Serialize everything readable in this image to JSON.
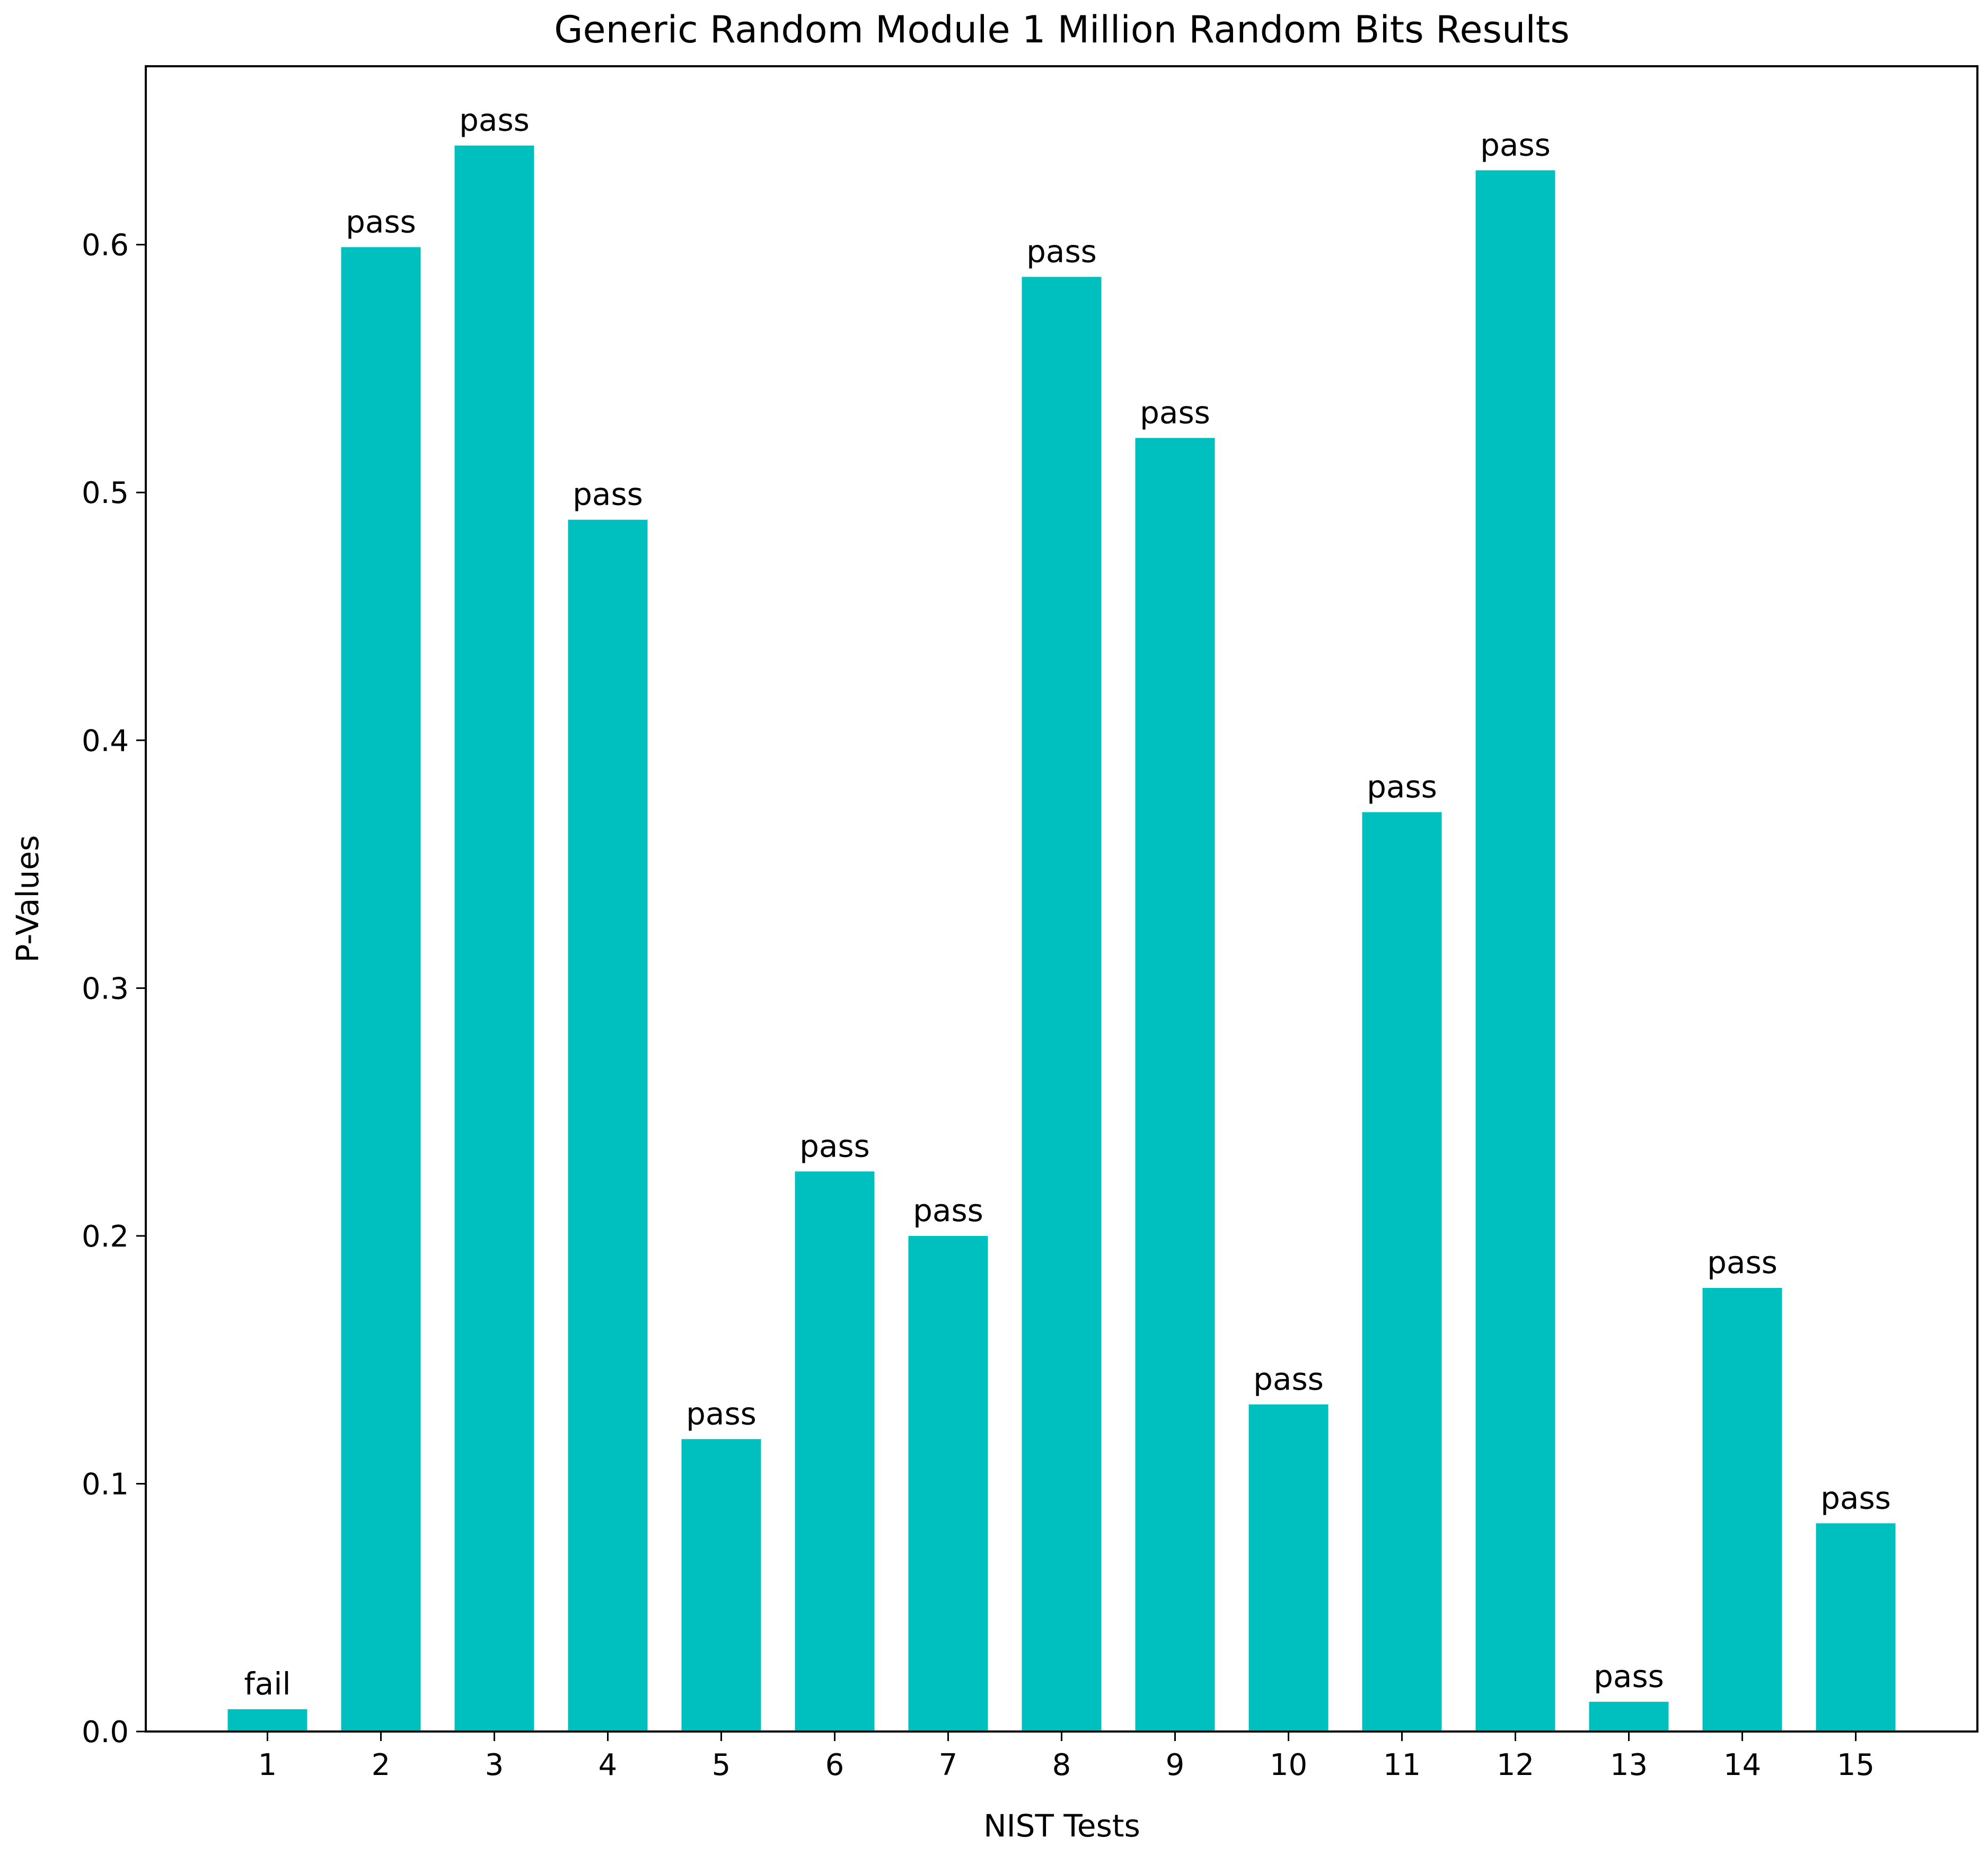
{
  "chart_data": {
    "type": "bar",
    "title": "Generic Random Module 1 Million Random Bits Results",
    "xlabel": "NIST Tests",
    "ylabel": "P-Values",
    "categories": [
      "1",
      "2",
      "3",
      "4",
      "5",
      "6",
      "7",
      "8",
      "9",
      "10",
      "11",
      "12",
      "13",
      "14",
      "15"
    ],
    "values": [
      0.009,
      0.599,
      0.64,
      0.489,
      0.118,
      0.226,
      0.2,
      0.587,
      0.522,
      0.132,
      0.371,
      0.63,
      0.012,
      0.179,
      0.084
    ],
    "bar_labels": [
      "fail",
      "pass",
      "pass",
      "pass",
      "pass",
      "pass",
      "pass",
      "pass",
      "pass",
      "pass",
      "pass",
      "pass",
      "pass",
      "pass",
      "pass"
    ],
    "ylim": [
      0,
      0.672
    ],
    "yticks": [
      0.0,
      0.1,
      0.2,
      0.3,
      0.4,
      0.5,
      0.6
    ],
    "ytick_labels": [
      "0.0",
      "0.1",
      "0.2",
      "0.3",
      "0.4",
      "0.5",
      "0.6"
    ],
    "grid": false,
    "bar_color": "#00bfbf"
  }
}
